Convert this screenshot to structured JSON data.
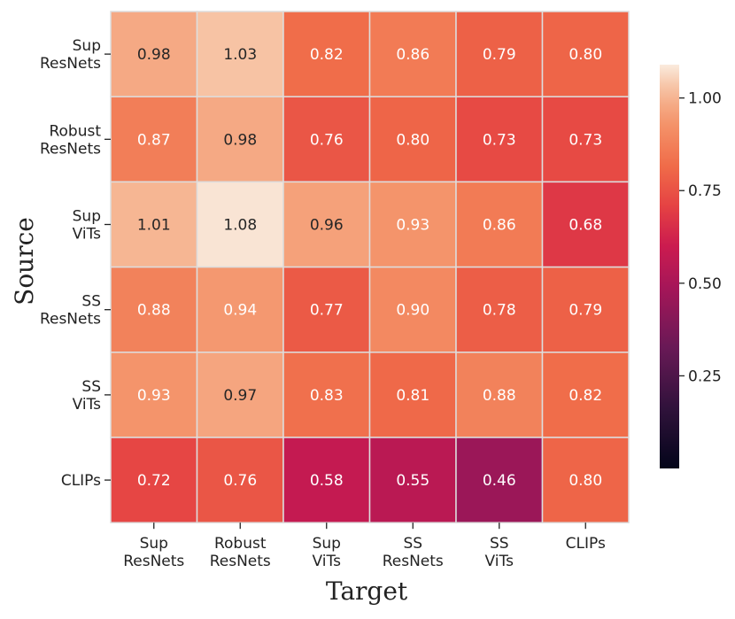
{
  "chart_data": {
    "type": "heatmap",
    "xlabel": "Target",
    "ylabel": "Source",
    "x_categories": [
      [
        "Sup",
        "ResNets"
      ],
      [
        "Robust",
        "ResNets"
      ],
      [
        "Sup",
        "ViTs"
      ],
      [
        "SS",
        "ResNets"
      ],
      [
        "SS",
        "ViTs"
      ],
      [
        "CLIPs"
      ]
    ],
    "y_categories": [
      [
        "Sup",
        "ResNets"
      ],
      [
        "Robust",
        "ResNets"
      ],
      [
        "Sup",
        "ViTs"
      ],
      [
        "SS",
        "ResNets"
      ],
      [
        "SS",
        "ViTs"
      ],
      [
        "CLIPs"
      ]
    ],
    "values": [
      [
        0.98,
        1.03,
        0.82,
        0.86,
        0.79,
        0.8
      ],
      [
        0.87,
        0.98,
        0.76,
        0.8,
        0.73,
        0.73
      ],
      [
        1.01,
        1.08,
        0.96,
        0.93,
        0.86,
        0.68
      ],
      [
        0.88,
        0.94,
        0.77,
        0.9,
        0.78,
        0.79
      ],
      [
        0.93,
        0.97,
        0.83,
        0.81,
        0.88,
        0.82
      ],
      [
        0.72,
        0.76,
        0.58,
        0.55,
        0.46,
        0.8
      ]
    ],
    "cell_labels": [
      [
        "0.98",
        "1.03",
        "0.82",
        "0.86",
        "0.79",
        "0.80"
      ],
      [
        "0.87",
        "0.98",
        "0.76",
        "0.80",
        "0.73",
        "0.73"
      ],
      [
        "1.01",
        "1.08",
        "0.96",
        "0.93",
        "0.86",
        "0.68"
      ],
      [
        "0.88",
        "0.94",
        "0.77",
        "0.90",
        "0.78",
        "0.79"
      ],
      [
        "0.93",
        "0.97",
        "0.83",
        "0.81",
        "0.88",
        "0.82"
      ],
      [
        "0.72",
        "0.76",
        "0.58",
        "0.55",
        "0.46",
        "0.80"
      ]
    ],
    "colormap": "rocket",
    "colorbar": {
      "vmin": 0.0,
      "vmax": 1.09,
      "ticks": [
        0.25,
        0.5,
        0.75,
        1.0
      ],
      "tick_labels": [
        "0.25",
        "0.50",
        "0.75",
        "1.00"
      ]
    },
    "grid_line_color": "#dddddd",
    "dark_text_color": "#262626",
    "light_text_color": "#ffffff"
  }
}
